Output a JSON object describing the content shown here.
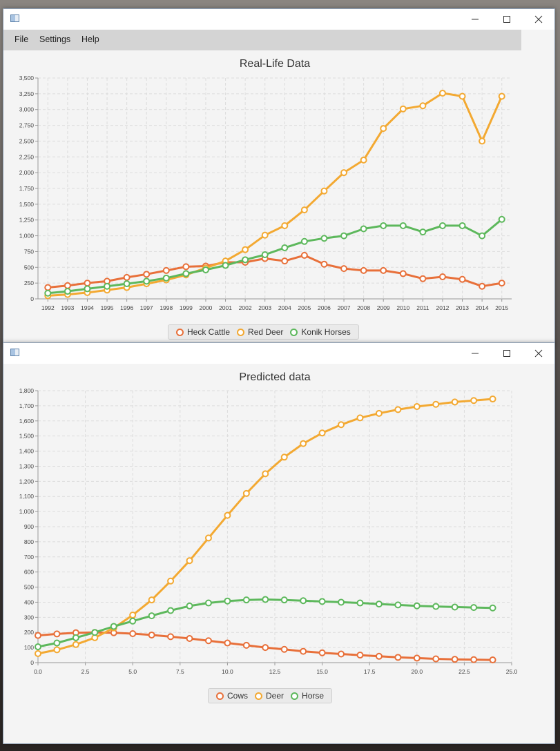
{
  "window1": {
    "menu": [
      "File",
      "Settings",
      "Help"
    ],
    "chart_data": {
      "type": "line",
      "title": "Real-Life Data",
      "categories": [
        "1992",
        "1993",
        "1994",
        "1995",
        "1996",
        "1997",
        "1998",
        "1999",
        "2000",
        "2001",
        "2002",
        "2003",
        "2004",
        "2005",
        "2006",
        "2007",
        "2008",
        "2009",
        "2010",
        "2011",
        "2012",
        "2013",
        "2014",
        "2015"
      ],
      "ylim": [
        0,
        3500
      ],
      "yticks": [
        0,
        250,
        500,
        750,
        1000,
        1250,
        1500,
        1750,
        2000,
        2250,
        2500,
        2750,
        3000,
        3250,
        3500
      ],
      "ytick_labels": [
        "0",
        "250",
        "500",
        "750",
        "1,000",
        "1,250",
        "1,500",
        "1,750",
        "2,000",
        "2,250",
        "2,500",
        "2,750",
        "3,000",
        "3,250",
        "3,500"
      ],
      "grid": true,
      "legend_position": "bottom",
      "series": [
        {
          "name": "Heck Cattle",
          "color": "#e8703a",
          "values": [
            180,
            210,
            250,
            280,
            340,
            390,
            450,
            510,
            520,
            580,
            580,
            640,
            600,
            690,
            550,
            480,
            450,
            450,
            400,
            320,
            350,
            310,
            200,
            250
          ]
        },
        {
          "name": "Red Deer",
          "color": "#f3a932",
          "values": [
            50,
            70,
            100,
            140,
            180,
            240,
            300,
            380,
            490,
            600,
            780,
            1010,
            1160,
            1410,
            1710,
            2000,
            2200,
            2700,
            3010,
            3060,
            3260,
            3210,
            2500,
            3210
          ]
        },
        {
          "name": "Konik Horses",
          "color": "#5db85c",
          "values": [
            90,
            120,
            160,
            200,
            240,
            280,
            330,
            400,
            460,
            530,
            620,
            700,
            810,
            910,
            960,
            1000,
            1110,
            1160,
            1160,
            1060,
            1160,
            1160,
            1000,
            1260
          ]
        }
      ]
    }
  },
  "window2": {
    "chart_data": {
      "type": "line",
      "title": "Predicted data",
      "xlim": [
        0,
        25
      ],
      "xticks": [
        0,
        2.5,
        5,
        7.5,
        10,
        12.5,
        15,
        17.5,
        20,
        22.5,
        25
      ],
      "xtick_labels": [
        "0.0",
        "2.5",
        "5.0",
        "7.5",
        "10.0",
        "12.5",
        "15.0",
        "17.5",
        "20.0",
        "22.5",
        "25.0"
      ],
      "ylim": [
        0,
        1800
      ],
      "yticks": [
        0,
        100,
        200,
        300,
        400,
        500,
        600,
        700,
        800,
        900,
        1000,
        1100,
        1200,
        1300,
        1400,
        1500,
        1600,
        1700,
        1800
      ],
      "ytick_labels": [
        "0",
        "100",
        "200",
        "300",
        "400",
        "500",
        "600",
        "700",
        "800",
        "900",
        "1,000",
        "1,100",
        "1,200",
        "1,300",
        "1,400",
        "1,500",
        "1,600",
        "1,700",
        "1,800"
      ],
      "grid": true,
      "legend_position": "bottom",
      "x": [
        0,
        1,
        2,
        3,
        4,
        5,
        6,
        7,
        8,
        9,
        10,
        11,
        12,
        13,
        14,
        15,
        16,
        17,
        18,
        19,
        20,
        21,
        22,
        23,
        24
      ],
      "series": [
        {
          "name": "Cows",
          "color": "#e8703a",
          "values": [
            180,
            190,
            198,
            200,
            198,
            192,
            183,
            172,
            160,
            145,
            130,
            115,
            100,
            88,
            75,
            65,
            57,
            50,
            42,
            35,
            30,
            25,
            22,
            20,
            18
          ]
        },
        {
          "name": "Deer",
          "color": "#f3a932",
          "values": [
            60,
            85,
            120,
            165,
            230,
            315,
            415,
            540,
            675,
            825,
            975,
            1120,
            1250,
            1360,
            1450,
            1520,
            1575,
            1620,
            1650,
            1675,
            1695,
            1710,
            1725,
            1735,
            1745
          ]
        },
        {
          "name": "Horse",
          "color": "#5db85c",
          "values": [
            105,
            130,
            165,
            200,
            240,
            275,
            310,
            345,
            375,
            395,
            408,
            415,
            418,
            415,
            410,
            405,
            400,
            395,
            388,
            382,
            376,
            372,
            368,
            365,
            362
          ]
        }
      ]
    }
  }
}
